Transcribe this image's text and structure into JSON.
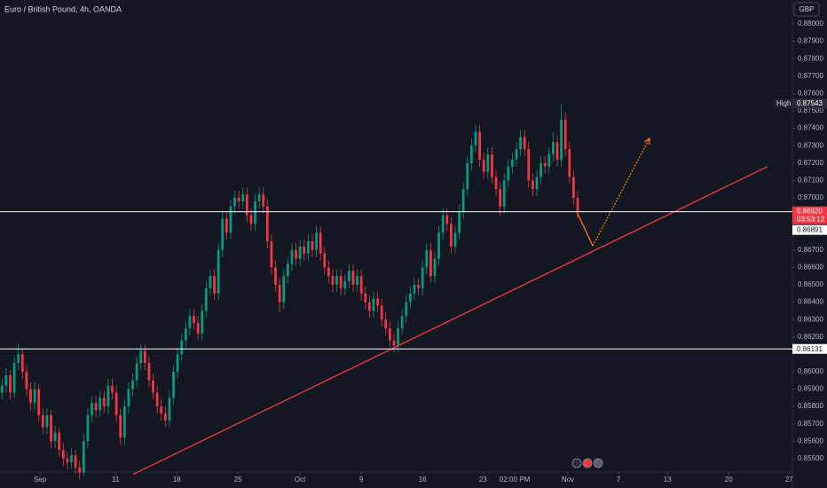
{
  "chart_data": {
    "type": "candlestick",
    "title": "Euro / British Pound, 4h, OANDA",
    "currency": "GBP",
    "up_color": "#089981",
    "down_color": "#f23645",
    "xlim": [
      -0.5,
      193.6
    ],
    "ylim": [
      0.85423,
      0.88138
    ],
    "xticks": [
      {
        "value": 9.3,
        "label": "Sep"
      },
      {
        "value": 27.8,
        "label": "11"
      },
      {
        "value": 42.8,
        "label": "18"
      },
      {
        "value": 57.8,
        "label": "25"
      },
      {
        "value": 73,
        "label": "Oct"
      },
      {
        "value": 88,
        "label": "9"
      },
      {
        "value": 103,
        "label": "16"
      },
      {
        "value": 117.8,
        "label": "23"
      },
      {
        "value": 125.6,
        "label": "02:00 PM"
      },
      {
        "value": 138.6,
        "label": "Nov"
      },
      {
        "value": 151,
        "label": "7"
      },
      {
        "value": 163,
        "label": "13"
      },
      {
        "value": 178,
        "label": "20"
      },
      {
        "value": 192.8,
        "label": "27"
      }
    ],
    "yticks": [
      {
        "value": 0.88,
        "label": "0.88000"
      },
      {
        "value": 0.879,
        "label": "0.87900"
      },
      {
        "value": 0.878,
        "label": "0.87800"
      },
      {
        "value": 0.877,
        "label": "0.87700"
      },
      {
        "value": 0.876,
        "label": "0.87600"
      },
      {
        "value": 0.875,
        "label": "0.87500"
      },
      {
        "value": 0.874,
        "label": "0.87400"
      },
      {
        "value": 0.873,
        "label": "0.87300"
      },
      {
        "value": 0.872,
        "label": "0.87200"
      },
      {
        "value": 0.871,
        "label": "0.87100"
      },
      {
        "value": 0.87,
        "label": "0.87000"
      },
      {
        "value": 0.867,
        "label": "0.86700"
      },
      {
        "value": 0.866,
        "label": "0.86600"
      },
      {
        "value": 0.865,
        "label": "0.86500"
      },
      {
        "value": 0.864,
        "label": "0.86400"
      },
      {
        "value": 0.863,
        "label": "0.86300"
      },
      {
        "value": 0.862,
        "label": "0.86200"
      },
      {
        "value": 0.86,
        "label": "0.86000"
      },
      {
        "value": 0.859,
        "label": "0.85900"
      },
      {
        "value": 0.858,
        "label": "0.85800"
      },
      {
        "value": 0.857,
        "label": "0.85700"
      },
      {
        "value": 0.856,
        "label": "0.85600"
      },
      {
        "value": 0.855,
        "label": "0.85500"
      }
    ],
    "open": [
      0.8588,
      0.8592,
      0.8598,
      0.8588,
      0.8605,
      0.861,
      0.86,
      0.859,
      0.8582,
      0.859,
      0.8575,
      0.8568,
      0.8575,
      0.856,
      0.8565,
      0.8555,
      0.855,
      0.8548,
      0.8552,
      0.8545,
      0.8542,
      0.856,
      0.8575,
      0.8582,
      0.8578,
      0.8585,
      0.858,
      0.8592,
      0.8588,
      0.8575,
      0.8562,
      0.858,
      0.859,
      0.8595,
      0.8605,
      0.8612,
      0.8605,
      0.8595,
      0.8588,
      0.858,
      0.8576,
      0.8572,
      0.8585,
      0.86,
      0.861,
      0.8618,
      0.8625,
      0.8632,
      0.8628,
      0.8622,
      0.8635,
      0.8648,
      0.8655,
      0.8645,
      0.867,
      0.8688,
      0.868,
      0.8695,
      0.87,
      0.8698,
      0.8702,
      0.869,
      0.8685,
      0.8698,
      0.8702,
      0.8695,
      0.8675,
      0.866,
      0.865,
      0.864,
      0.8655,
      0.8662,
      0.867,
      0.8665,
      0.8672,
      0.8668,
      0.8675,
      0.867,
      0.868,
      0.8668,
      0.866,
      0.8655,
      0.865,
      0.8655,
      0.8648,
      0.8652,
      0.8658,
      0.865,
      0.8655,
      0.8645,
      0.864,
      0.8635,
      0.8642,
      0.8638,
      0.863,
      0.8625,
      0.8618,
      0.8615,
      0.8625,
      0.8632,
      0.864,
      0.8645,
      0.865,
      0.8648,
      0.866,
      0.867,
      0.8655,
      0.8665,
      0.868,
      0.869,
      0.8685,
      0.8672,
      0.868,
      0.8692,
      0.8705,
      0.872,
      0.873,
      0.8738,
      0.8722,
      0.8715,
      0.8725,
      0.8712,
      0.8705,
      0.8695,
      0.871,
      0.8718,
      0.8722,
      0.8728,
      0.8735,
      0.8728,
      0.871,
      0.8705,
      0.8712,
      0.872,
      0.8718,
      0.8725,
      0.8732,
      0.8722,
      0.8745,
      0.8728,
      0.8712,
      0.87
    ],
    "high": [
      0.8596,
      0.8602,
      0.8601,
      0.8609,
      0.8616,
      0.8613,
      0.8604,
      0.8594,
      0.8594,
      0.8593,
      0.8579,
      0.8579,
      0.8578,
      0.8569,
      0.8568,
      0.8559,
      0.8554,
      0.8556,
      0.8555,
      0.8549,
      0.8564,
      0.8579,
      0.8586,
      0.8586,
      0.8589,
      0.8589,
      0.8596,
      0.8596,
      0.8592,
      0.8579,
      0.8584,
      0.8594,
      0.8599,
      0.8609,
      0.8616,
      0.8616,
      0.8609,
      0.8599,
      0.8592,
      0.8584,
      0.858,
      0.8589,
      0.8604,
      0.8614,
      0.8622,
      0.8629,
      0.8636,
      0.8636,
      0.8632,
      0.8639,
      0.8652,
      0.8659,
      0.8659,
      0.8674,
      0.8692,
      0.8692,
      0.8699,
      0.8704,
      0.8704,
      0.8706,
      0.8706,
      0.8694,
      0.8702,
      0.8706,
      0.8706,
      0.8699,
      0.8679,
      0.8664,
      0.8654,
      0.8659,
      0.8666,
      0.8674,
      0.8674,
      0.8676,
      0.8676,
      0.8679,
      0.8679,
      0.8684,
      0.8684,
      0.8672,
      0.8664,
      0.8659,
      0.8659,
      0.8659,
      0.8656,
      0.8662,
      0.8662,
      0.8659,
      0.8659,
      0.8649,
      0.8644,
      0.8646,
      0.8646,
      0.8642,
      0.8634,
      0.8629,
      0.8622,
      0.8629,
      0.8636,
      0.8644,
      0.8649,
      0.8654,
      0.8654,
      0.8664,
      0.8674,
      0.8674,
      0.8669,
      0.8684,
      0.8694,
      0.8694,
      0.8689,
      0.8684,
      0.8696,
      0.8709,
      0.8724,
      0.8734,
      0.8742,
      0.8742,
      0.8726,
      0.8729,
      0.8729,
      0.8716,
      0.8709,
      0.8714,
      0.8722,
      0.8726,
      0.8732,
      0.8739,
      0.8739,
      0.8732,
      0.8714,
      0.8716,
      0.8724,
      0.8724,
      0.8729,
      0.8738,
      0.8736,
      0.87543,
      0.8749,
      0.8732,
      0.8716,
      0.8704
    ],
    "low": [
      0.8584,
      0.8588,
      0.8584,
      0.8585,
      0.8601,
      0.8596,
      0.8586,
      0.8578,
      0.8578,
      0.8571,
      0.8564,
      0.8564,
      0.8556,
      0.8556,
      0.8551,
      0.8546,
      0.8544,
      0.8544,
      0.8541,
      0.8538,
      0.854,
      0.8556,
      0.8571,
      0.8574,
      0.8574,
      0.8576,
      0.8576,
      0.8584,
      0.8571,
      0.8558,
      0.8558,
      0.8576,
      0.8586,
      0.8591,
      0.8601,
      0.8601,
      0.8591,
      0.8584,
      0.8576,
      0.8572,
      0.8568,
      0.8568,
      0.8581,
      0.8596,
      0.8606,
      0.8614,
      0.8621,
      0.8624,
      0.8618,
      0.8618,
      0.8631,
      0.8644,
      0.8641,
      0.8641,
      0.8666,
      0.8676,
      0.8676,
      0.8691,
      0.8694,
      0.8694,
      0.8686,
      0.8681,
      0.8681,
      0.8694,
      0.8691,
      0.8671,
      0.8656,
      0.8646,
      0.8634,
      0.8636,
      0.8651,
      0.8658,
      0.8661,
      0.8661,
      0.8664,
      0.8664,
      0.8666,
      0.8666,
      0.8664,
      0.8656,
      0.8651,
      0.8646,
      0.8646,
      0.8644,
      0.8644,
      0.8648,
      0.8646,
      0.8646,
      0.8641,
      0.8636,
      0.8631,
      0.8631,
      0.8634,
      0.8626,
      0.8621,
      0.8614,
      0.8611,
      0.8611,
      0.8621,
      0.8628,
      0.8636,
      0.8641,
      0.8644,
      0.8644,
      0.8656,
      0.8651,
      0.8651,
      0.8661,
      0.8676,
      0.8681,
      0.8668,
      0.8668,
      0.8676,
      0.8688,
      0.8701,
      0.8716,
      0.8726,
      0.8718,
      0.8711,
      0.8711,
      0.8708,
      0.8701,
      0.869,
      0.8691,
      0.8706,
      0.8714,
      0.8718,
      0.8724,
      0.8724,
      0.8706,
      0.8701,
      0.8701,
      0.8708,
      0.8714,
      0.8714,
      0.8721,
      0.8718,
      0.8718,
      0.8724,
      0.8708,
      0.8696,
      0.8688
    ],
    "close": [
      0.8592,
      0.8598,
      0.8588,
      0.8605,
      0.861,
      0.86,
      0.859,
      0.8582,
      0.859,
      0.8575,
      0.8568,
      0.8575,
      0.856,
      0.8565,
      0.8555,
      0.855,
      0.8548,
      0.8552,
      0.8545,
      0.8542,
      0.856,
      0.8575,
      0.8582,
      0.8578,
      0.8585,
      0.858,
      0.8592,
      0.8588,
      0.8575,
      0.8562,
      0.858,
      0.859,
      0.8595,
      0.8605,
      0.8612,
      0.8605,
      0.8595,
      0.8588,
      0.858,
      0.8576,
      0.8572,
      0.8585,
      0.86,
      0.861,
      0.8618,
      0.8625,
      0.8632,
      0.8628,
      0.8622,
      0.8635,
      0.8648,
      0.8655,
      0.8645,
      0.867,
      0.8688,
      0.868,
      0.8695,
      0.87,
      0.8698,
      0.8702,
      0.869,
      0.8685,
      0.8698,
      0.8702,
      0.8695,
      0.8675,
      0.866,
      0.865,
      0.864,
      0.8655,
      0.8662,
      0.867,
      0.8665,
      0.8672,
      0.8668,
      0.8675,
      0.867,
      0.868,
      0.8668,
      0.866,
      0.8655,
      0.865,
      0.8655,
      0.8648,
      0.8652,
      0.8658,
      0.865,
      0.8655,
      0.8645,
      0.864,
      0.8635,
      0.8642,
      0.8638,
      0.863,
      0.8625,
      0.8618,
      0.8615,
      0.8625,
      0.8632,
      0.864,
      0.8645,
      0.865,
      0.8648,
      0.866,
      0.867,
      0.8655,
      0.8665,
      0.868,
      0.869,
      0.8685,
      0.8672,
      0.868,
      0.8692,
      0.8705,
      0.872,
      0.873,
      0.8738,
      0.8722,
      0.8715,
      0.8725,
      0.8712,
      0.8705,
      0.8695,
      0.871,
      0.8718,
      0.8722,
      0.8728,
      0.8735,
      0.8728,
      0.871,
      0.8705,
      0.8712,
      0.872,
      0.8718,
      0.8725,
      0.8732,
      0.8722,
      0.8745,
      0.8728,
      0.8712,
      0.87,
      0.8692
    ],
    "last_price": {
      "value": 0.8692,
      "label": "0.86920",
      "countdown": "03:53:12"
    },
    "prev_close": {
      "value": 0.86891,
      "label": "0.86891"
    },
    "support": {
      "value": 0.86131,
      "label": "0.86131"
    },
    "high_marker": {
      "name": "High",
      "value": 0.87543,
      "label": "0.87543"
    },
    "trendline": {
      "color": "#f23645",
      "x": [
        32.1,
        187.5
      ],
      "y": [
        0.8541,
        0.8718
      ]
    },
    "projection": {
      "color": "#f57c00",
      "x": [
        140.8,
        144.7,
        158.6
      ],
      "y": [
        0.8692,
        0.86724,
        0.87342
      ]
    }
  }
}
